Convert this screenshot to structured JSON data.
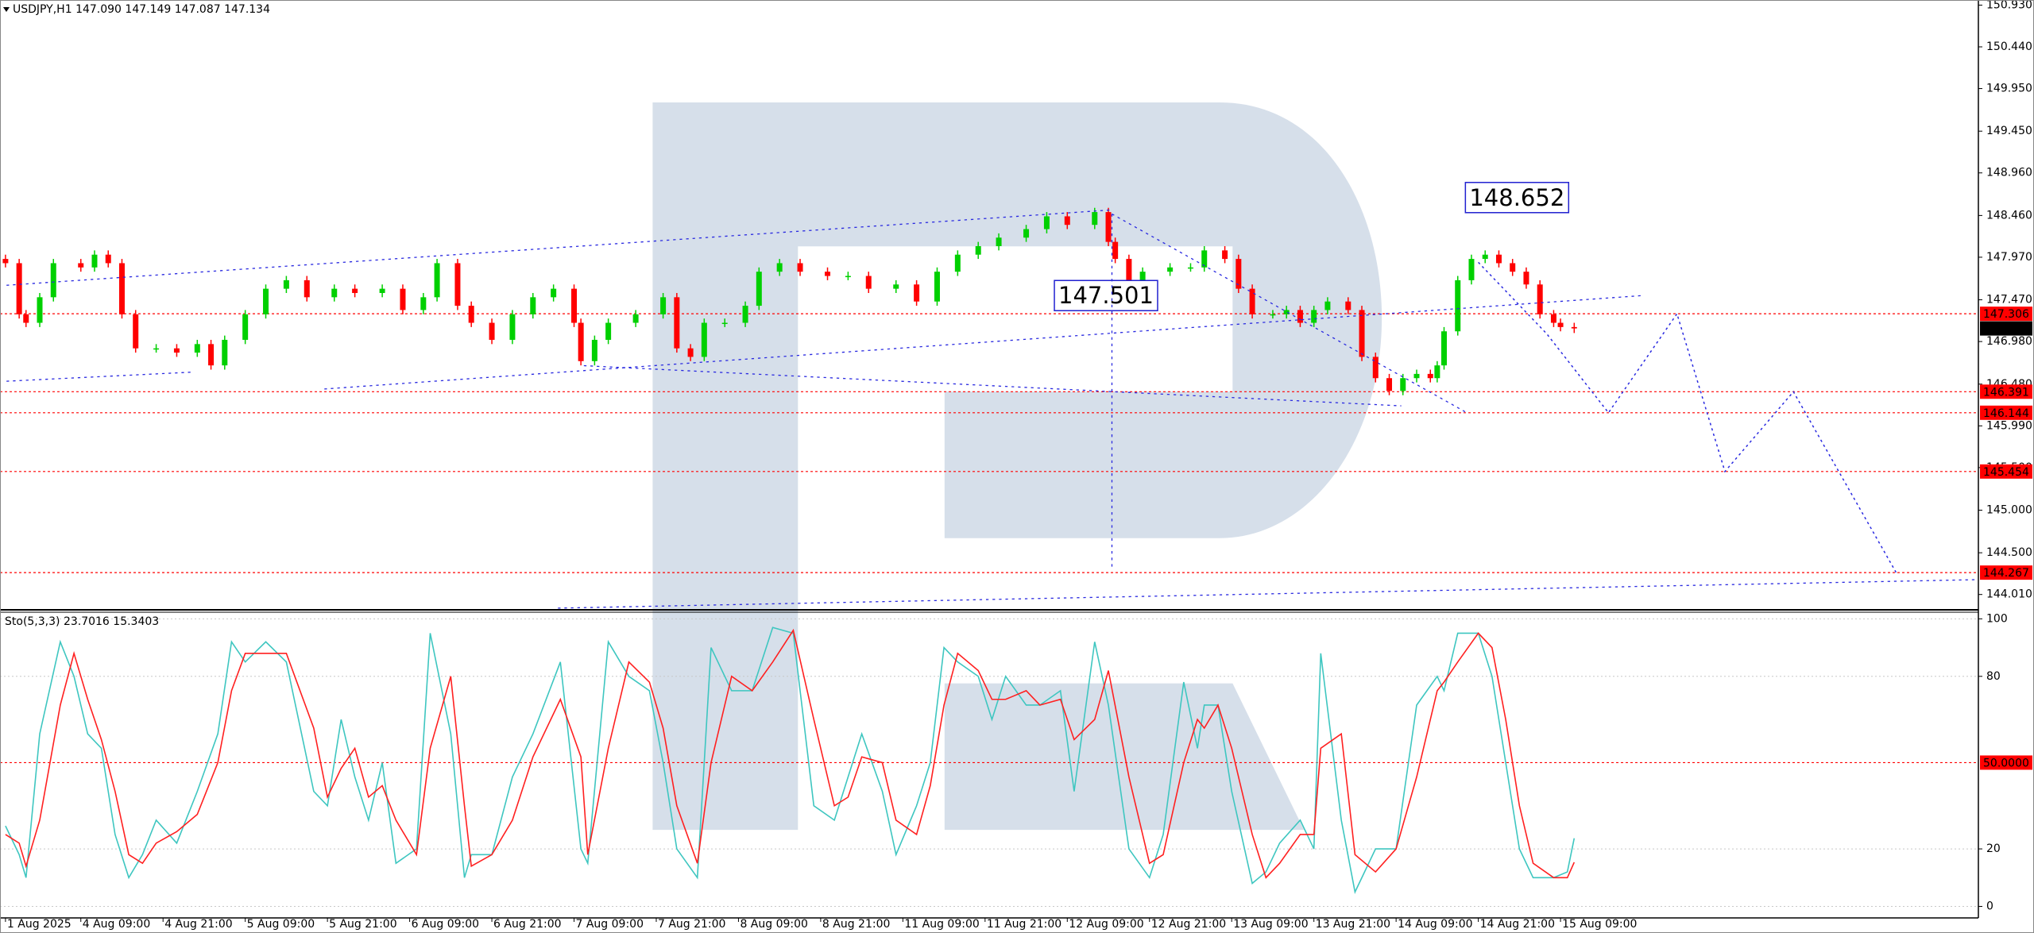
{
  "chart_data": [
    {
      "type": "candlestick",
      "title": "USDJPY,H1 147.090 147.149 147.087 147.134",
      "up_color": "#00d000",
      "down_color": "#ff0000",
      "x": [
        0,
        2,
        3,
        5,
        7,
        11,
        13,
        15,
        17,
        19,
        22,
        25,
        28,
        30,
        32,
        35,
        38,
        41,
        44,
        48,
        51,
        55,
        58,
        61,
        63,
        66,
        68,
        71,
        74,
        77,
        80,
        83,
        84,
        86,
        88,
        92,
        96,
        98,
        100,
        102,
        105,
        108,
        110,
        113,
        116,
        120,
        123,
        126,
        130,
        133,
        136,
        139,
        142,
        145,
        149,
        152,
        155,
        159,
        161,
        162,
        164,
        166,
        170,
        173,
        175,
        178,
        180,
        182,
        185,
        187,
        189,
        191,
        193,
        196,
        198,
        200,
        202,
        204,
        206,
        208,
        209,
        210,
        212,
        214,
        216,
        218,
        220,
        222,
        224,
        226,
        227,
        229
      ],
      "open": [
        147.95,
        147.9,
        147.3,
        147.2,
        147.5,
        147.9,
        147.85,
        148.0,
        147.9,
        147.3,
        146.9,
        146.9,
        146.85,
        146.95,
        146.7,
        147.0,
        147.3,
        147.6,
        147.7,
        147.5,
        147.6,
        147.55,
        147.6,
        147.35,
        147.5,
        147.9,
        147.4,
        147.2,
        147.0,
        147.3,
        147.5,
        147.6,
        147.2,
        146.75,
        147.0,
        147.2,
        147.3,
        147.5,
        146.9,
        146.8,
        147.2,
        147.2,
        147.4,
        147.8,
        147.9,
        147.8,
        147.75,
        147.75,
        147.6,
        147.65,
        147.45,
        147.8,
        148.0,
        148.1,
        148.2,
        148.3,
        148.45,
        148.35,
        148.5,
        148.15,
        147.95,
        147.7,
        147.8,
        147.85,
        147.85,
        148.05,
        147.95,
        147.6,
        147.3,
        147.3,
        147.35,
        147.2,
        147.35,
        147.45,
        147.35,
        146.8,
        146.55,
        146.4,
        146.55,
        146.6,
        146.55,
        146.7,
        147.1,
        147.7,
        147.95,
        148.0,
        147.9,
        147.8,
        147.65,
        147.3,
        147.2,
        147.15
      ],
      "high": [
        148.0,
        147.95,
        147.35,
        147.55,
        147.95,
        147.95,
        148.05,
        148.05,
        147.95,
        147.35,
        146.95,
        146.95,
        147.0,
        147.0,
        147.05,
        147.35,
        147.65,
        147.75,
        147.75,
        147.65,
        147.65,
        147.65,
        147.65,
        147.55,
        147.95,
        147.95,
        147.45,
        147.25,
        147.35,
        147.55,
        147.65,
        147.65,
        147.25,
        147.05,
        147.25,
        147.35,
        147.55,
        147.55,
        146.95,
        147.25,
        147.25,
        147.45,
        147.85,
        147.95,
        147.95,
        147.85,
        147.8,
        147.8,
        147.7,
        147.7,
        147.85,
        148.05,
        148.15,
        148.25,
        148.35,
        148.5,
        148.5,
        148.55,
        148.55,
        148.2,
        148.0,
        147.85,
        147.9,
        147.9,
        148.1,
        148.1,
        148.0,
        147.65,
        147.35,
        147.4,
        147.4,
        147.4,
        147.5,
        147.5,
        147.4,
        146.85,
        146.6,
        146.6,
        146.65,
        146.65,
        146.75,
        147.15,
        147.75,
        148.0,
        148.05,
        148.05,
        147.95,
        147.85,
        147.7,
        147.35,
        147.25,
        147.2
      ],
      "low": [
        147.85,
        147.25,
        147.15,
        147.15,
        147.45,
        147.8,
        147.8,
        147.85,
        147.25,
        146.85,
        146.85,
        146.8,
        146.8,
        146.65,
        146.65,
        146.95,
        147.25,
        147.55,
        147.45,
        147.45,
        147.5,
        147.5,
        147.3,
        147.3,
        147.45,
        147.35,
        147.15,
        146.95,
        146.95,
        147.25,
        147.45,
        147.15,
        146.7,
        146.7,
        146.95,
        147.15,
        147.25,
        146.85,
        146.75,
        146.75,
        147.15,
        147.15,
        147.35,
        147.75,
        147.75,
        147.7,
        147.7,
        147.55,
        147.55,
        147.4,
        147.4,
        147.75,
        147.95,
        148.05,
        148.15,
        148.25,
        148.3,
        148.3,
        148.1,
        147.9,
        147.65,
        147.65,
        147.75,
        147.8,
        147.8,
        147.9,
        147.55,
        147.25,
        147.25,
        147.25,
        147.15,
        147.15,
        147.3,
        147.3,
        146.75,
        146.5,
        146.35,
        146.35,
        146.5,
        146.5,
        146.5,
        146.65,
        147.05,
        147.65,
        147.9,
        147.85,
        147.75,
        147.6,
        147.25,
        147.15,
        147.1,
        147.08
      ],
      "close": [
        147.9,
        147.3,
        147.2,
        147.5,
        147.9,
        147.85,
        148.0,
        147.9,
        147.3,
        146.9,
        146.9,
        146.85,
        146.95,
        146.7,
        147.0,
        147.3,
        147.6,
        147.7,
        147.5,
        147.6,
        147.55,
        147.6,
        147.35,
        147.5,
        147.9,
        147.4,
        147.2,
        147.0,
        147.3,
        147.5,
        147.6,
        147.2,
        146.75,
        147.0,
        147.2,
        147.3,
        147.5,
        146.9,
        146.8,
        147.2,
        147.2,
        147.4,
        147.8,
        147.9,
        147.8,
        147.75,
        147.75,
        147.6,
        147.65,
        147.45,
        147.8,
        148.0,
        148.1,
        148.2,
        148.3,
        148.45,
        148.35,
        148.5,
        148.15,
        147.95,
        147.7,
        147.8,
        147.85,
        147.85,
        148.05,
        147.95,
        147.6,
        147.3,
        147.3,
        147.35,
        147.2,
        147.35,
        147.45,
        147.35,
        146.8,
        146.55,
        146.4,
        146.55,
        146.6,
        146.55,
        146.7,
        147.1,
        147.7,
        147.95,
        148.0,
        147.9,
        147.8,
        147.65,
        147.3,
        147.2,
        147.15,
        147.134
      ],
      "forecast": {
        "color": "#2a2ae0",
        "x": [
          215,
          225,
          234,
          244,
          251,
          261,
          276
        ],
        "values": [
          147.91,
          147.07,
          146.144,
          147.306,
          145.454,
          146.391,
          144.267
        ]
      },
      "annotations": [
        {
          "x": 213,
          "value": 148.652
        },
        {
          "x": 153,
          "value": 147.501
        }
      ],
      "annotation_color": "#2020d0",
      "levels": [
        147.306,
        146.391,
        146.144,
        145.454,
        144.267
      ],
      "level_color": "#ff0000",
      "current_price": 147.134,
      "xlim": [
        -0.8,
        288
      ],
      "ylim": [
        143.83,
        150.99
      ],
      "yticks": [
        {
          "value": 150.93,
          "label": "150.930"
        },
        {
          "value": 150.44,
          "label": "150.440"
        },
        {
          "value": 149.95,
          "label": "149.950"
        },
        {
          "value": 149.45,
          "label": "149.450"
        },
        {
          "value": 148.96,
          "label": "148.960"
        },
        {
          "value": 148.46,
          "label": "148.460"
        },
        {
          "value": 147.97,
          "label": "147.970"
        },
        {
          "value": 147.47,
          "label": "147.470"
        },
        {
          "value": 146.98,
          "label": "146.980"
        },
        {
          "value": 146.48,
          "label": "146.480"
        },
        {
          "value": 145.99,
          "label": "145.990"
        },
        {
          "value": 145.5,
          "label": "145.500"
        },
        {
          "value": 145.0,
          "label": "145.000"
        },
        {
          "value": 144.5,
          "label": "144.500"
        },
        {
          "value": 144.01,
          "label": "144.010"
        }
      ],
      "grid": false
    },
    {
      "type": "line",
      "title": "Sto(5,3,3) 23.7016 15.3403",
      "x": [
        0,
        2,
        3,
        5,
        8,
        10,
        12,
        14,
        16,
        18,
        20,
        22,
        25,
        28,
        31,
        33,
        35,
        38,
        41,
        45,
        47,
        49,
        51,
        53,
        55,
        57,
        60,
        62,
        65,
        67,
        68,
        71,
        74,
        77,
        81,
        84,
        85,
        88,
        91,
        94,
        96,
        98,
        101,
        103,
        106,
        109,
        112,
        115,
        118,
        121,
        123,
        125,
        128,
        130,
        133,
        135,
        137,
        139,
        142,
        144,
        146,
        149,
        151,
        154,
        156,
        159,
        161,
        164,
        167,
        169,
        172,
        174,
        175,
        177,
        179,
        182,
        184,
        186,
        189,
        191,
        192,
        195,
        197,
        200,
        203,
        206,
        209,
        210,
        212,
        215,
        217,
        219,
        221,
        223,
        226,
        228,
        229
      ],
      "series": [
        {
          "color": "#3ec6c0",
          "values": [
            28,
            18,
            10,
            60,
            92,
            80,
            60,
            55,
            25,
            10,
            18,
            30,
            22,
            40,
            60,
            92,
            85,
            92,
            85,
            40,
            35,
            65,
            45,
            30,
            50,
            15,
            20,
            95,
            60,
            10,
            18,
            18,
            45,
            60,
            85,
            20,
            15,
            92,
            80,
            75,
            50,
            20,
            10,
            90,
            75,
            75,
            97,
            95,
            35,
            30,
            45,
            60,
            40,
            18,
            35,
            50,
            90,
            85,
            80,
            65,
            80,
            70,
            70,
            75,
            40,
            92,
            70,
            20,
            10,
            25,
            78,
            55,
            70,
            70,
            40,
            8,
            12,
            22,
            30,
            20,
            88,
            30,
            5,
            20,
            20,
            70,
            80,
            75,
            95,
            95,
            80,
            50,
            20,
            10,
            10,
            12,
            23.7016
          ]
        },
        {
          "color": "#ff2020",
          "values": [
            25,
            22,
            14,
            30,
            70,
            88,
            72,
            58,
            40,
            18,
            15,
            22,
            26,
            32,
            50,
            75,
            88,
            88,
            88,
            62,
            38,
            48,
            55,
            38,
            42,
            30,
            18,
            55,
            80,
            35,
            14,
            18,
            30,
            52,
            72,
            52,
            18,
            55,
            85,
            78,
            62,
            35,
            15,
            50,
            80,
            75,
            85,
            96,
            65,
            35,
            38,
            52,
            50,
            30,
            25,
            42,
            70,
            88,
            82,
            72,
            72,
            75,
            70,
            72,
            58,
            65,
            82,
            45,
            15,
            18,
            50,
            65,
            62,
            70,
            55,
            25,
            10,
            15,
            25,
            25,
            55,
            60,
            18,
            12,
            20,
            45,
            75,
            78,
            85,
            95,
            90,
            65,
            35,
            15,
            10,
            10,
            15.3403
          ]
        }
      ],
      "levels": [
        {
          "value": 50,
          "label": "50.0000"
        }
      ],
      "level_color": "#ff0000",
      "xlim": [
        -0.8,
        288
      ],
      "ylim": [
        -4,
        102.3
      ],
      "yticks": [
        100,
        80,
        20,
        0
      ],
      "xticks": [
        {
          "value": 0,
          "label": "1 Aug 2025"
        },
        {
          "value": 11,
          "label": "4 Aug 09:00"
        },
        {
          "value": 23,
          "label": "4 Aug 21:00"
        },
        {
          "value": 35,
          "label": "5 Aug 09:00"
        },
        {
          "value": 47,
          "label": "5 Aug 21:00"
        },
        {
          "value": 59,
          "label": "6 Aug 09:00"
        },
        {
          "value": 71,
          "label": "6 Aug 21:00"
        },
        {
          "value": 83,
          "label": "7 Aug 09:00"
        },
        {
          "value": 95,
          "label": "7 Aug 21:00"
        },
        {
          "value": 107,
          "label": "8 Aug 09:00"
        },
        {
          "value": 119,
          "label": "8 Aug 21:00"
        },
        {
          "value": 131,
          "label": "11 Aug 09:00"
        },
        {
          "value": 143,
          "label": "11 Aug 21:00"
        },
        {
          "value": 155,
          "label": "12 Aug 09:00"
        },
        {
          "value": 167,
          "label": "12 Aug 21:00"
        },
        {
          "value": 179,
          "label": "13 Aug 09:00"
        },
        {
          "value": 191,
          "label": "13 Aug 21:00"
        },
        {
          "value": 203,
          "label": "14 Aug 09:00"
        },
        {
          "value": 215,
          "label": "14 Aug 21:00"
        },
        {
          "value": 227,
          "label": "15 Aug 09:00"
        }
      ],
      "grid": true
    }
  ]
}
